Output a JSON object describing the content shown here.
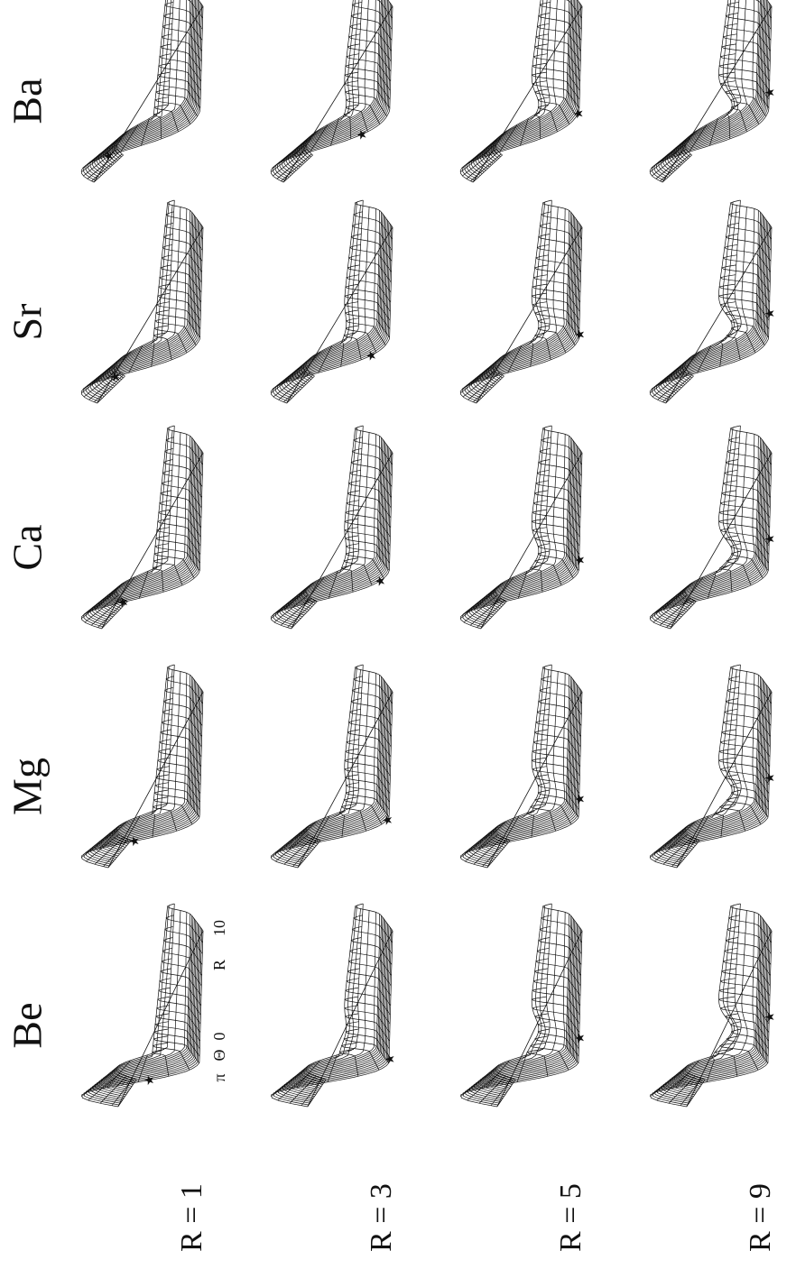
{
  "columns": [
    "Be",
    "Mg",
    "Ca",
    "Sr",
    "Ba"
  ],
  "rows": [
    "R = 1",
    "R = 3",
    "R = 5",
    "R = 9"
  ],
  "axis_labels": {
    "theta_max": "π",
    "theta": "Θ",
    "theta_min": "0",
    "r": "R",
    "r_max": "10"
  }
}
